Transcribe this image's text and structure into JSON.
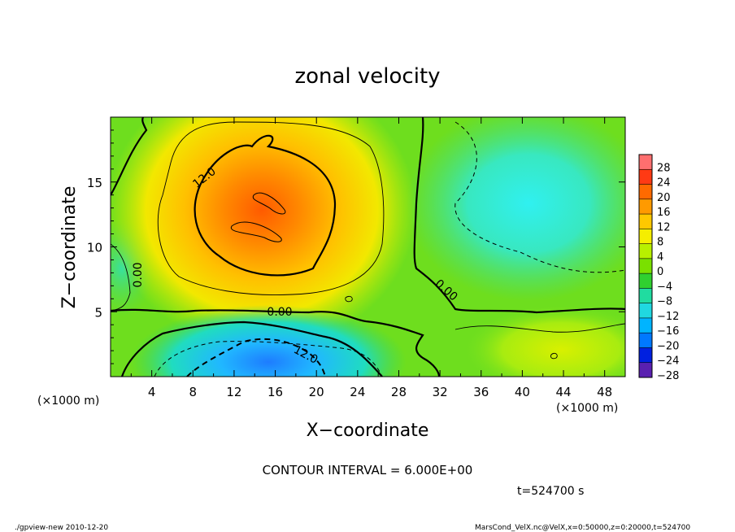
{
  "chart_data": {
    "type": "heatmap",
    "title": "zonal velocity",
    "xlabel": "X−coordinate",
    "ylabel": "Z−coordinate",
    "x_unit": "(×1000 m)",
    "x_unit_right": "(×1000 m)",
    "z_unit": "(×1000 m)",
    "xlim": [
      0,
      50
    ],
    "ylim": [
      0,
      20
    ],
    "x_ticks": [
      "4",
      "8",
      "12",
      "16",
      "20",
      "24",
      "28",
      "32",
      "36",
      "40",
      "44",
      "48"
    ],
    "x_tick_values": [
      4,
      8,
      12,
      16,
      20,
      24,
      28,
      32,
      36,
      40,
      44,
      48
    ],
    "y_ticks": [
      "5",
      "10",
      "15"
    ],
    "y_tick_values": [
      5,
      10,
      15
    ],
    "colorbar": {
      "labels": [
        "28",
        "24",
        "20",
        "16",
        "12",
        "8",
        "4",
        "0",
        "−4",
        "−8",
        "−12",
        "−16",
        "−20",
        "−24",
        "−28"
      ],
      "values": [
        28,
        24,
        20,
        16,
        12,
        8,
        4,
        0,
        -4,
        -8,
        -12,
        -16,
        -20,
        -24,
        -28
      ],
      "colors": [
        "#ff6f6f",
        "#ff3a14",
        "#ff6a00",
        "#ff9a00",
        "#ffc800",
        "#f5ee00",
        "#b8f000",
        "#7ae000",
        "#30d030",
        "#20dca0",
        "#20d8e0",
        "#00b4ff",
        "#0078ff",
        "#0020e0",
        "#5a20b0"
      ]
    },
    "contour_labels": [
      "12.0",
      "0.00",
      "0.00",
      "0.00",
      "12.0"
    ],
    "contour_interval": "CONTOUR INTERVAL = 6.000E+00",
    "time": "t=524700 s",
    "footer_left": "./gpview-new   2010-12-20",
    "footer_right": "MarsCond_VelX.nc@VelX,x=0:50000,z=0:20000,t=524700",
    "field_centers": [
      {
        "x": 14.5,
        "z": 12.5,
        "value": 19
      },
      {
        "x": 16,
        "z": 1.5,
        "value": -14
      },
      {
        "x": 44,
        "z": 15,
        "value": -8
      },
      {
        "x": 43.5,
        "z": 2,
        "value": 8
      }
    ]
  }
}
